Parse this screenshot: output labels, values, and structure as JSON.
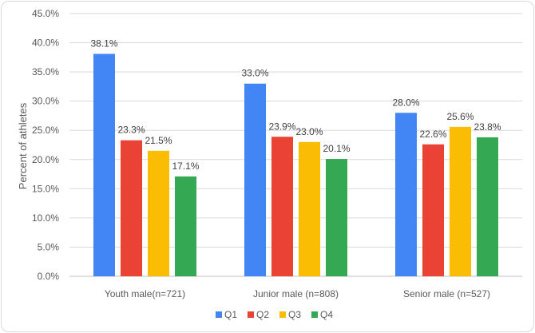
{
  "chart_data": {
    "type": "bar",
    "title": "",
    "xlabel": "",
    "ylabel": "Percent of athletes",
    "ylim": [
      0,
      45
    ],
    "ytick_step": 5,
    "ytick_labels": [
      "0.0%",
      "5.0%",
      "10.0%",
      "15.0%",
      "20.0%",
      "25.0%",
      "30.0%",
      "35.0%",
      "40.0%",
      "45.0%"
    ],
    "grid": true,
    "legend_position": "bottom-center",
    "categories": [
      "Youth male(n=721)",
      "Junior male (n=808)",
      "Senior male (n=527)"
    ],
    "series": [
      {
        "name": "Q1",
        "color": "#4285F4",
        "values": [
          38.1,
          33.0,
          28.0
        ],
        "labels": [
          "38.1%",
          "33.0%",
          "28.0%"
        ]
      },
      {
        "name": "Q2",
        "color": "#EA4335",
        "values": [
          23.3,
          23.9,
          22.6
        ],
        "labels": [
          "23.3%",
          "23.9%",
          "22.6%"
        ]
      },
      {
        "name": "Q3",
        "color": "#FBBC04",
        "values": [
          21.5,
          23.0,
          25.6
        ],
        "labels": [
          "21.5%",
          "23.0%",
          "25.6%"
        ]
      },
      {
        "name": "Q4",
        "color": "#34A853",
        "values": [
          17.1,
          20.1,
          23.8
        ],
        "labels": [
          "17.1%",
          "20.1%",
          "23.8%"
        ]
      }
    ]
  }
}
